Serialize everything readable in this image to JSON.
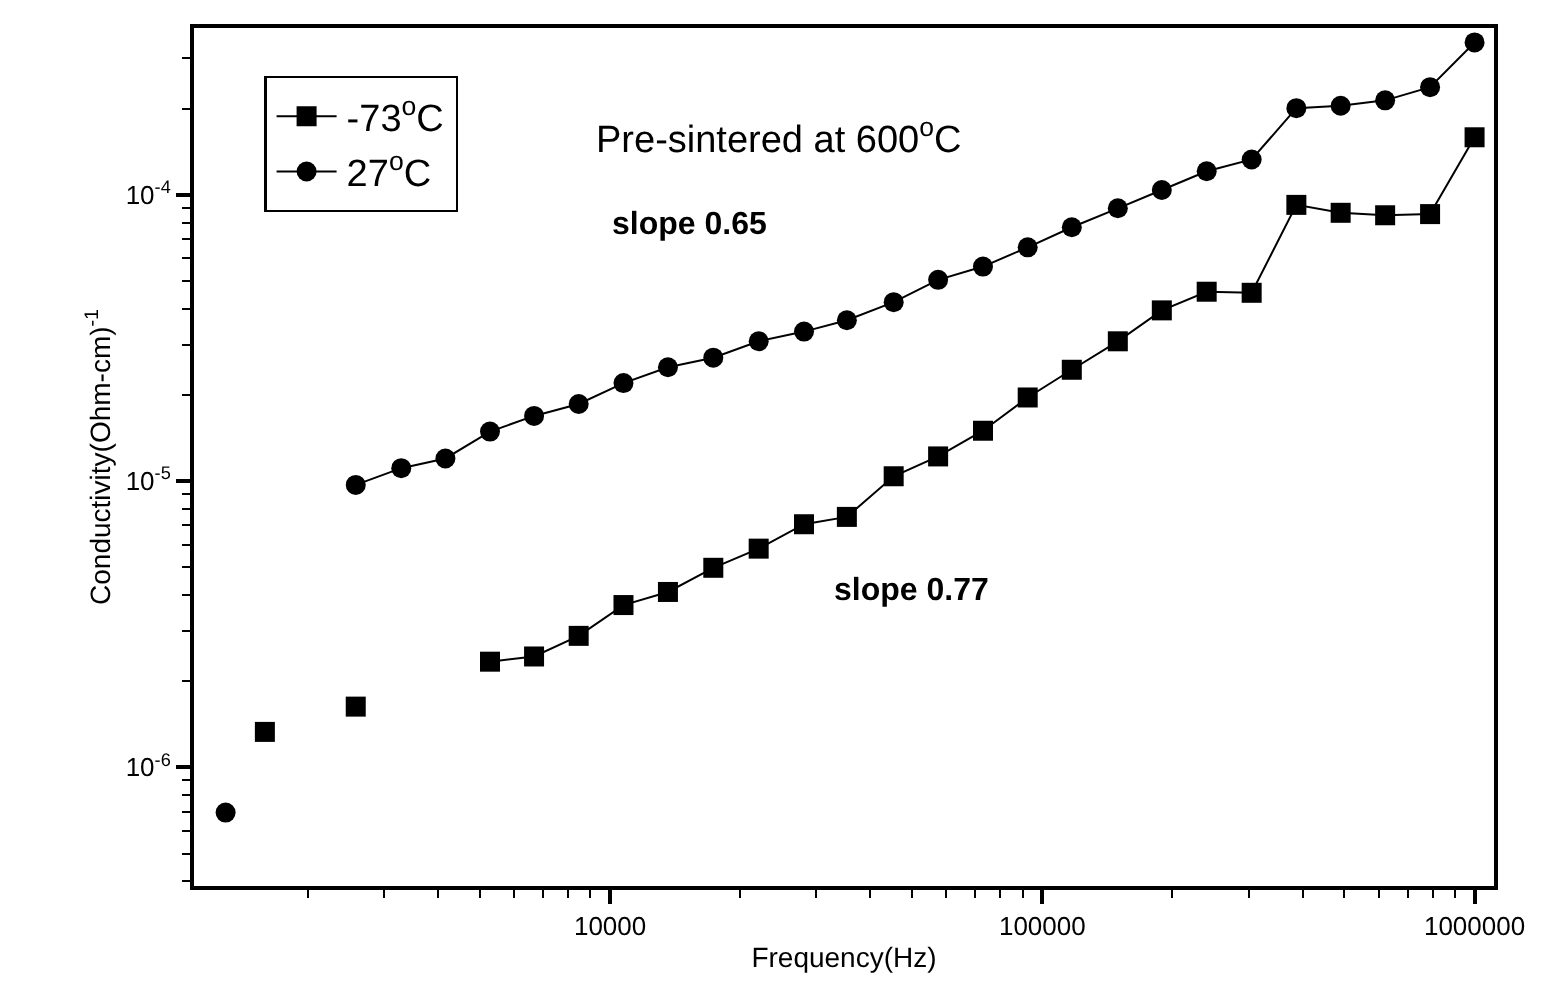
{
  "chart_data": {
    "type": "line",
    "xlabel": "Frequency(Hz)",
    "ylabel": "Conductivity(Ohm-cm)$^{-1}$",
    "log": "xy",
    "legend": "top left",
    "annotations": [
      "Pre-sintered at 600$^{o}$C",
      "slope 0.65",
      "slope 0.77"
    ],
    "xlim": [
      1090,
      1109000
    ],
    "xticks": [
      {
        "value": 2000,
        "label": null
      },
      {
        "value": 3000,
        "label": null
      },
      {
        "value": 4000,
        "label": null
      },
      {
        "value": 5000,
        "label": null
      },
      {
        "value": 6000,
        "label": null
      },
      {
        "value": 7000,
        "label": null
      },
      {
        "value": 8000,
        "label": null
      },
      {
        "value": 9000,
        "label": null
      },
      10000,
      {
        "value": 20000,
        "label": null
      },
      {
        "value": 30000,
        "label": null
      },
      {
        "value": 40000,
        "label": null
      },
      {
        "value": 50000,
        "label": null
      },
      {
        "value": 60000,
        "label": null
      },
      {
        "value": 70000,
        "label": null
      },
      {
        "value": 80000,
        "label": null
      },
      {
        "value": 90000,
        "label": null
      },
      100000,
      {
        "value": 200000,
        "label": null
      },
      {
        "value": 300000,
        "label": null
      },
      {
        "value": 400000,
        "label": null
      },
      {
        "value": 500000,
        "label": null
      },
      {
        "value": 600000,
        "label": null
      },
      {
        "value": 700000,
        "label": null
      },
      {
        "value": 800000,
        "label": null
      },
      {
        "value": 900000,
        "label": null
      },
      1000000
    ],
    "ylim": [
      3.85e-07,
      0.000383
    ],
    "yticks": [
      {
        "value": 4e-07,
        "label": null
      },
      {
        "value": 5e-07,
        "label": null
      },
      {
        "value": 6e-07,
        "label": null
      },
      {
        "value": 7e-07,
        "label": null
      },
      {
        "value": 8e-07,
        "label": null
      },
      {
        "value": 9e-07,
        "label": null
      },
      {
        "value": 1e-06,
        "label": "10$^{-6}$"
      },
      {
        "value": 2e-06,
        "label": null
      },
      {
        "value": 3e-06,
        "label": null
      },
      {
        "value": 4e-06,
        "label": null
      },
      {
        "value": 5e-06,
        "label": null
      },
      {
        "value": 6e-06,
        "label": null
      },
      {
        "value": 7e-06,
        "label": null
      },
      {
        "value": 8e-06,
        "label": null
      },
      {
        "value": 9e-06,
        "label": null
      },
      {
        "value": 1e-05,
        "label": "10$^{-5}$"
      },
      {
        "value": 2e-05,
        "label": null
      },
      {
        "value": 3e-05,
        "label": null
      },
      {
        "value": 4e-05,
        "label": null
      },
      {
        "value": 5e-05,
        "label": null
      },
      {
        "value": 6e-05,
        "label": null
      },
      {
        "value": 7e-05,
        "label": null
      },
      {
        "value": 8e-05,
        "label": null
      },
      {
        "value": 9e-05,
        "label": null
      },
      {
        "value": 0.0001,
        "label": "10$^{-4}$"
      },
      {
        "value": 0.0002,
        "label": null
      },
      {
        "value": 0.0003,
        "label": null
      }
    ],
    "series": [
      {
        "name": "-73$^{o}$C",
        "color": "#000000",
        "marker": "square",
        "x": [
          5275,
          6670,
          8460,
          10740,
          13610,
          17330,
          22070,
          28100,
          35300,
          45300,
          57400,
          72900,
          92500,
          117000,
          149500,
          189000,
          240000,
          305000,
          387000,
          490000,
          621000,
          789000,
          1000000
        ],
        "values": [
          2.34e-06,
          2.44e-06,
          2.88e-06,
          3.69e-06,
          4.1e-06,
          4.98e-06,
          5.81e-06,
          7.07e-06,
          7.5e-06,
          1.04e-05,
          1.22e-05,
          1.5e-05,
          1.96e-05,
          2.45e-05,
          3.08e-05,
          3.95e-05,
          4.59e-05,
          4.55e-05,
          9.23e-05,
          8.66e-05,
          8.49e-05,
          8.57e-05,
          0.000159
        ]
      },
      {
        "name": "27$^{o}$C",
        "color": "#000000",
        "marker": "circle",
        "x": [
          2580,
          3288,
          4160,
          5275,
          6670,
          8460,
          10740,
          13610,
          17330,
          22070,
          28100,
          35300,
          45300,
          57400,
          72900,
          92500,
          117000,
          149500,
          189000,
          240000,
          305000,
          387000,
          490000,
          621000,
          789000,
          1000000
        ],
        "values": [
          9.7e-06,
          1.11e-05,
          1.2e-05,
          1.49e-05,
          1.69e-05,
          1.86e-05,
          2.2e-05,
          2.5e-05,
          2.7e-05,
          3.08e-05,
          3.33e-05,
          3.65e-05,
          4.22e-05,
          5.05e-05,
          5.62e-05,
          6.56e-05,
          7.71e-05,
          8.98e-05,
          0.000104,
          0.000121,
          0.000133,
          0.000201,
          0.000205,
          0.000214,
          0.000238,
          0.000341
        ]
      },
      {
        "color": "#000000",
        "type": "scatter",
        "marker": "square",
        "x": [
          1590,
          2580
        ],
        "values": [
          1.33e-06,
          1.63e-06
        ]
      },
      {
        "color": "#000000",
        "type": "scatter",
        "marker": "circle",
        "x": [
          1290
        ],
        "values": [
          6.95e-07
        ]
      }
    ]
  }
}
